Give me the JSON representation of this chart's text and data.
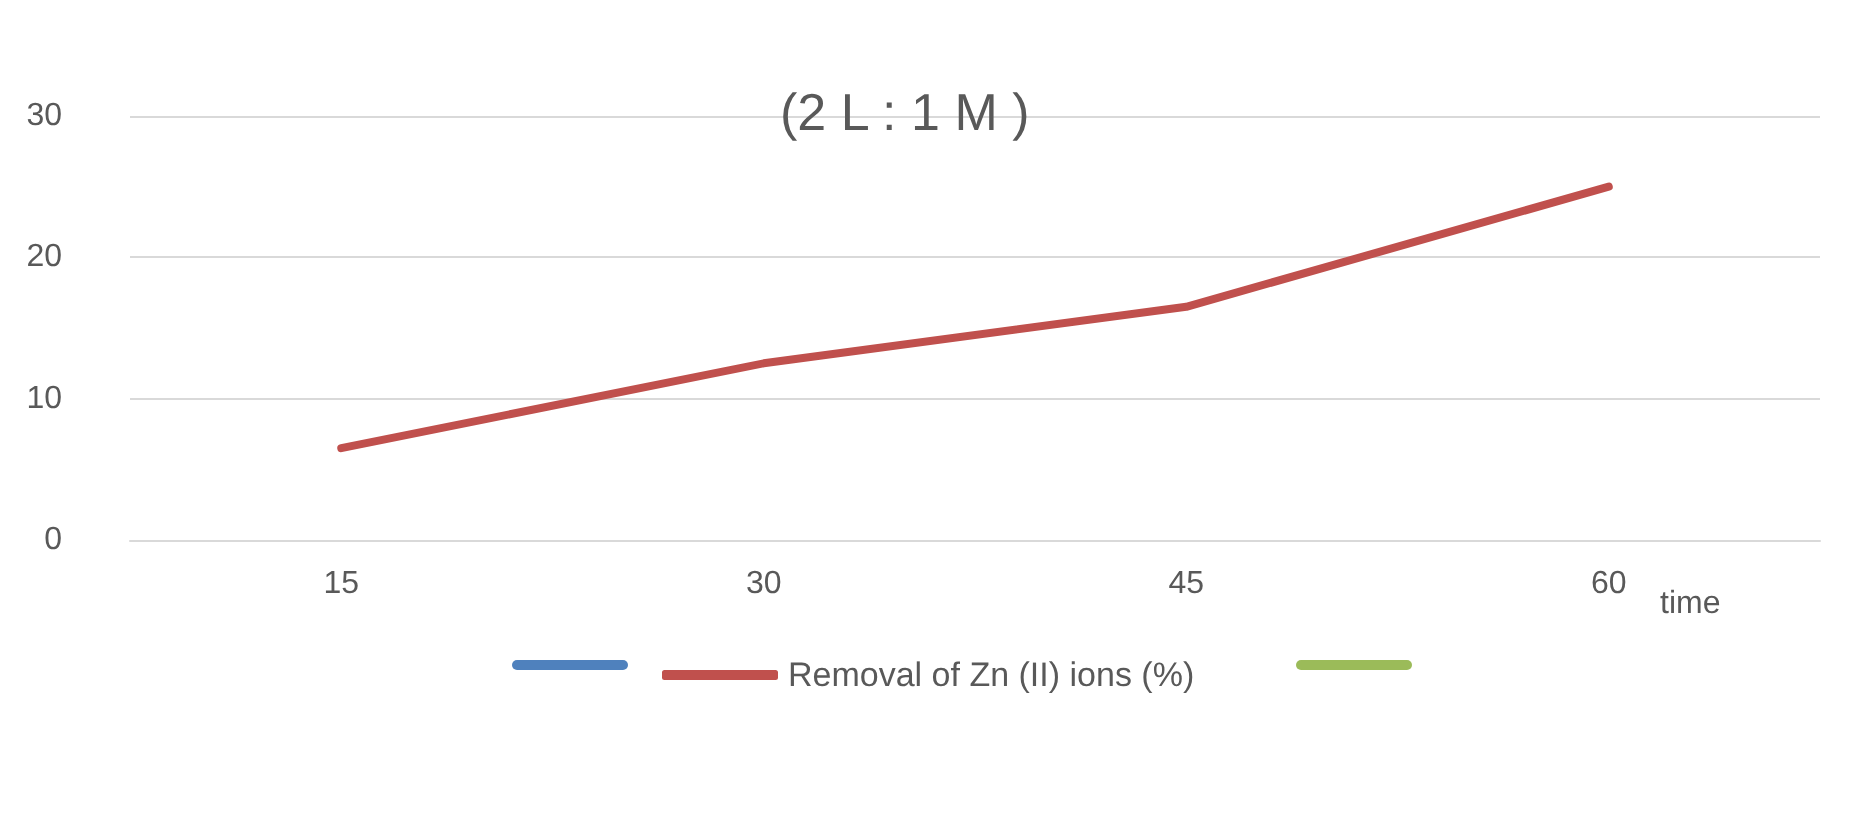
{
  "chart_data": {
    "type": "line",
    "title": "(2 L : 1 M )",
    "xlabel": "time",
    "categories": [
      "15",
      "30",
      "45",
      "60"
    ],
    "series": [
      {
        "color": "#4f81bd",
        "values": [
          null,
          null,
          null,
          null
        ]
      },
      {
        "name": "Removal of Zn (II) ions (%)",
        "color": "#c0504d",
        "values": [
          6.5,
          12.5,
          16.5,
          25
        ]
      },
      {
        "color": "#9bbb59",
        "values": [
          null,
          null,
          null,
          null
        ]
      }
    ],
    "ylim": [
      0,
      30
    ],
    "yticks": [
      0,
      10,
      20,
      30
    ],
    "grid": "y",
    "legend": "bottom",
    "marker": "none",
    "line_style": "solid"
  }
}
